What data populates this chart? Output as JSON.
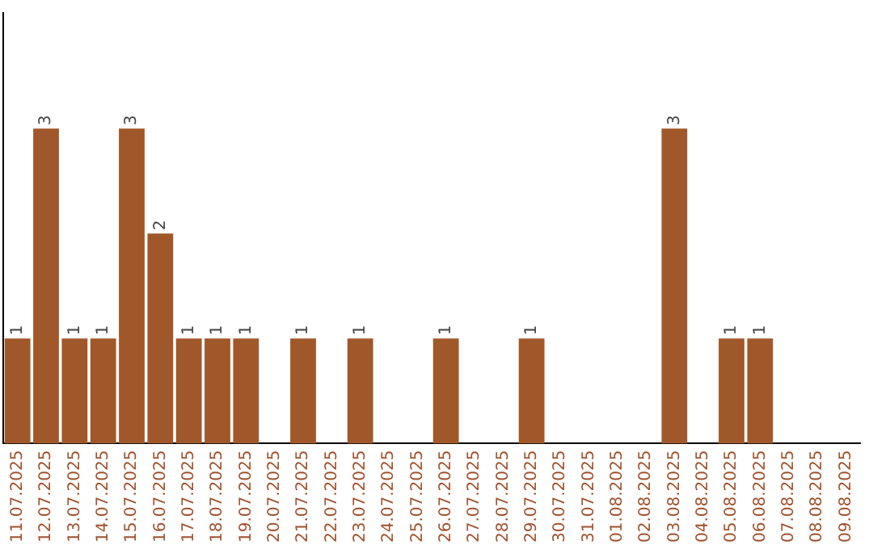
{
  "chart_data": {
    "type": "bar",
    "categories": [
      "11.07.2025",
      "12.07.2025",
      "13.07.2025",
      "14.07.2025",
      "15.07.2025",
      "16.07.2025",
      "17.07.2025",
      "18.07.2025",
      "19.07.2025",
      "20.07.2025",
      "21.07.2025",
      "22.07.2025",
      "23.07.2025",
      "24.07.2025",
      "25.07.2025",
      "26.07.2025",
      "27.07.2025",
      "28.07.2025",
      "29.07.2025",
      "30.07.2025",
      "31.07.2025",
      "01.08.2025",
      "02.08.2025",
      "03.08.2025",
      "04.08.2025",
      "05.08.2025",
      "06.08.2025",
      "07.08.2025",
      "08.08.2025",
      "09.08.2025"
    ],
    "values": [
      1,
      3,
      1,
      1,
      3,
      2,
      1,
      1,
      1,
      0,
      1,
      0,
      1,
      0,
      0,
      1,
      0,
      0,
      1,
      0,
      0,
      0,
      0,
      3,
      0,
      1,
      1,
      0,
      0,
      0
    ],
    "value_labels": [
      "1",
      "3",
      "1",
      "1",
      "3",
      "2",
      "1",
      "1",
      "1",
      null,
      "1",
      null,
      "1",
      null,
      null,
      "1",
      null,
      null,
      "1",
      null,
      null,
      null,
      null,
      "3",
      null,
      "1",
      "1",
      null,
      null,
      null
    ],
    "color": "#a0582a",
    "ylim": [
      0,
      4.1
    ],
    "tick_labels": "x",
    "grid": false,
    "legend": false
  }
}
